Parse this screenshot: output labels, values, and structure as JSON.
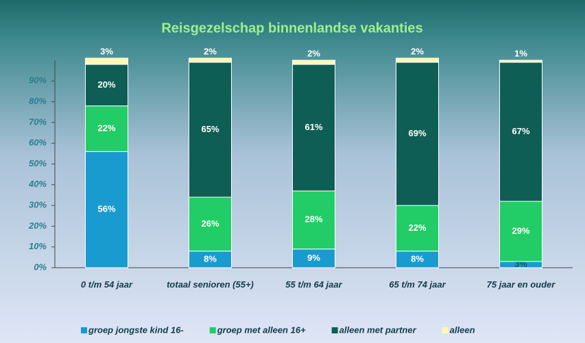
{
  "chart_data": {
    "type": "stacked_bar",
    "title": "Reisgezelschap binnenlandse vakanties",
    "categories": [
      "0 t/m 54 jaar",
      "totaal senioren (55+)",
      "55 t/m 64 jaar",
      "65 t/m 74 jaar",
      "75 jaar en ouder"
    ],
    "series": [
      {
        "name": "groep jongste kind 16-",
        "color": "#1a9bcf",
        "values": [
          56,
          8,
          9,
          8,
          3
        ],
        "value_labels": [
          "56%",
          "8%",
          "9%",
          "8%",
          "3%"
        ]
      },
      {
        "name": "groep met alleen 16+",
        "color": "#22cc66",
        "values": [
          22,
          26,
          28,
          22,
          29
        ],
        "value_labels": [
          "22%",
          "26%",
          "28%",
          "22%",
          "29%"
        ]
      },
      {
        "name": "alleen met partner",
        "color": "#0f5e55",
        "values": [
          20,
          65,
          61,
          69,
          67
        ],
        "value_labels": [
          "20%",
          "65%",
          "61%",
          "69%",
          "67%"
        ]
      },
      {
        "name": "alleen",
        "color": "#fff8b0",
        "values": [
          3,
          2,
          2,
          2,
          1
        ],
        "value_labels": [
          "3%",
          "2%",
          "2%",
          "2%",
          "1%"
        ]
      }
    ],
    "ylim": [
      0,
      100
    ],
    "yticks": [
      {
        "value": 0,
        "label": "0%"
      },
      {
        "value": 10,
        "label": "10%"
      },
      {
        "value": 20,
        "label": "20%"
      },
      {
        "value": 30,
        "label": "30%"
      },
      {
        "value": 40,
        "label": "40%"
      },
      {
        "value": 50,
        "label": "50%"
      },
      {
        "value": 60,
        "label": "60%"
      },
      {
        "value": 70,
        "label": "70%"
      },
      {
        "value": 80,
        "label": "80%"
      },
      {
        "value": 90,
        "label": "90%"
      }
    ],
    "legend": "bottom"
  }
}
